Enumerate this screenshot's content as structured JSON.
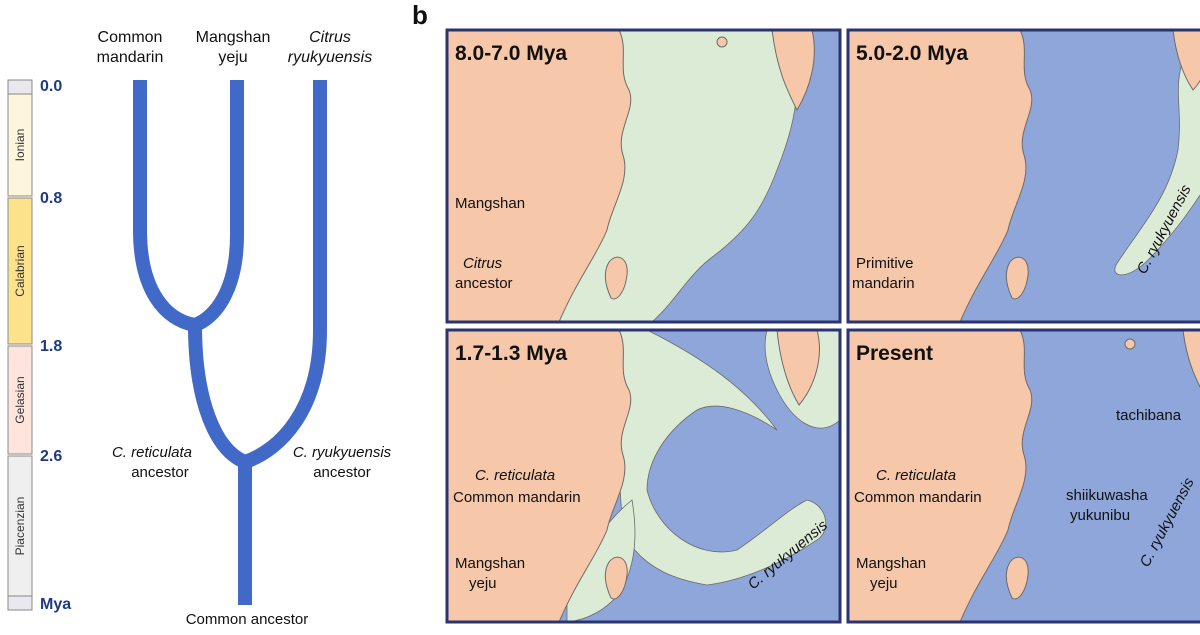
{
  "panel_label": "b",
  "timescale": {
    "ages": [
      "0.0",
      "0.8",
      "1.8",
      "2.6"
    ],
    "unit": "Mya",
    "stages": [
      "Ionian",
      "Calabrian",
      "Gelasian",
      "Piacenzian"
    ]
  },
  "tree": {
    "tips": [
      [
        "Common",
        "mandarin"
      ],
      [
        "Mangshan",
        "yeju"
      ],
      [
        "Citrus",
        "ryukyuensis"
      ]
    ],
    "ancestors": [
      [
        "C. reticulata",
        "ancestor"
      ],
      [
        "C. ryukyuensis",
        "ancestor"
      ],
      [
        "Common ancestor"
      ]
    ]
  },
  "maps": [
    {
      "title": "8.0-7.0 Mya",
      "labels": [
        "Mangshan",
        "Citrus",
        "ancestor"
      ]
    },
    {
      "title": "5.0-2.0 Mya",
      "labels": [
        "Primitive",
        "mandarin",
        "C. ryukyuensis"
      ]
    },
    {
      "title": "1.7-1.3 Mya",
      "labels": [
        "C. reticulata",
        "Common mandarin",
        "Mangshan",
        "yeju",
        "C. ryukyuensis"
      ]
    },
    {
      "title": "Present",
      "labels": [
        "C. reticulata",
        "Common mandarin",
        "Mangshan",
        "yeju",
        "tachibana",
        "shiikuwasha",
        "yukunibu",
        "C. ryukyuensis"
      ]
    }
  ]
}
